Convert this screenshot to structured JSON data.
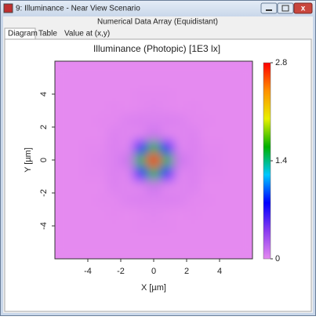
{
  "window": {
    "title": "9: Illuminance - Near View Scenario",
    "header": "Numerical Data Array (Equidistant)",
    "tabs": [
      "Diagram",
      "Table",
      "Value at (x,y)"
    ]
  },
  "chart_data": {
    "type": "heatmap",
    "title": "Illuminance (Photopic)   [1E3 lx]",
    "x_label": "X [µm]",
    "y_label": "Y [µm]",
    "x": [
      -5.6,
      -4.8,
      -4.0,
      -3.2,
      -2.4,
      -1.6,
      -0.8,
      0,
      0.8,
      1.6,
      2.4,
      3.2,
      4.0,
      4.8,
      5.6
    ],
    "y": [
      -5.6,
      -4.8,
      -4.0,
      -3.2,
      -2.4,
      -1.6,
      -0.8,
      0,
      0.8,
      1.6,
      2.4,
      3.2,
      4.0,
      4.8,
      5.6
    ],
    "z": [
      [
        0,
        0,
        0,
        0,
        0,
        0,
        0,
        0,
        0,
        0,
        0,
        0,
        0,
        0,
        0
      ],
      [
        0,
        0,
        0,
        0,
        0,
        0,
        0,
        0,
        0,
        0,
        0,
        0,
        0,
        0,
        0
      ],
      [
        0,
        0,
        0,
        0,
        0,
        0,
        0.01,
        0.01,
        0.01,
        0,
        0,
        0,
        0,
        0,
        0
      ],
      [
        0,
        0,
        0,
        0,
        0.01,
        0,
        0.01,
        0.02,
        0.01,
        0,
        0.01,
        0,
        0,
        0,
        0
      ],
      [
        0,
        0,
        0,
        0.01,
        0.01,
        0.04,
        0.05,
        0.04,
        0.05,
        0.04,
        0.01,
        0.01,
        0,
        0,
        0
      ],
      [
        0,
        0,
        0,
        0,
        0.04,
        0.02,
        0.02,
        0.12,
        0.02,
        0.02,
        0.04,
        0,
        0,
        0,
        0
      ],
      [
        0,
        0,
        0.01,
        0.01,
        0.05,
        0.02,
        0.75,
        1.51,
        0.75,
        0.02,
        0.05,
        0.01,
        0.01,
        0,
        0
      ],
      [
        0,
        0,
        0.01,
        0.02,
        0.04,
        0.12,
        1.51,
        2.8,
        1.51,
        0.12,
        0.04,
        0.02,
        0.01,
        0,
        0
      ],
      [
        0,
        0,
        0.01,
        0.01,
        0.05,
        0.02,
        0.75,
        1.51,
        0.75,
        0.02,
        0.05,
        0.01,
        0.01,
        0,
        0
      ],
      [
        0,
        0,
        0,
        0,
        0.04,
        0.02,
        0.02,
        0.12,
        0.02,
        0.02,
        0.04,
        0,
        0,
        0,
        0
      ],
      [
        0,
        0,
        0,
        0.01,
        0.01,
        0.04,
        0.05,
        0.04,
        0.05,
        0.04,
        0.01,
        0.01,
        0,
        0,
        0
      ],
      [
        0,
        0,
        0,
        0,
        0.01,
        0,
        0.01,
        0.02,
        0.01,
        0,
        0.01,
        0,
        0,
        0,
        0
      ],
      [
        0,
        0,
        0,
        0,
        0,
        0,
        0.01,
        0.01,
        0.01,
        0,
        0,
        0,
        0,
        0,
        0
      ],
      [
        0,
        0,
        0,
        0,
        0,
        0,
        0,
        0,
        0,
        0,
        0,
        0,
        0,
        0,
        0
      ],
      [
        0,
        0,
        0,
        0,
        0,
        0,
        0,
        0,
        0,
        0,
        0,
        0,
        0,
        0,
        0
      ]
    ],
    "xlim": [
      -6,
      6
    ],
    "ylim": [
      -6,
      6
    ],
    "xticks": [
      -4,
      -2,
      0,
      2,
      4
    ],
    "yticks": [
      -4,
      -2,
      0,
      2,
      4
    ],
    "zlim": [
      0,
      2.8
    ],
    "zticks": [
      0,
      1.4,
      2.8
    ],
    "colormap": [
      "#e58af0",
      "#8a3cf0",
      "#0000ff",
      "#00c8ff",
      "#00b000",
      "#e8f000",
      "#ff9000",
      "#ff0000"
    ]
  }
}
